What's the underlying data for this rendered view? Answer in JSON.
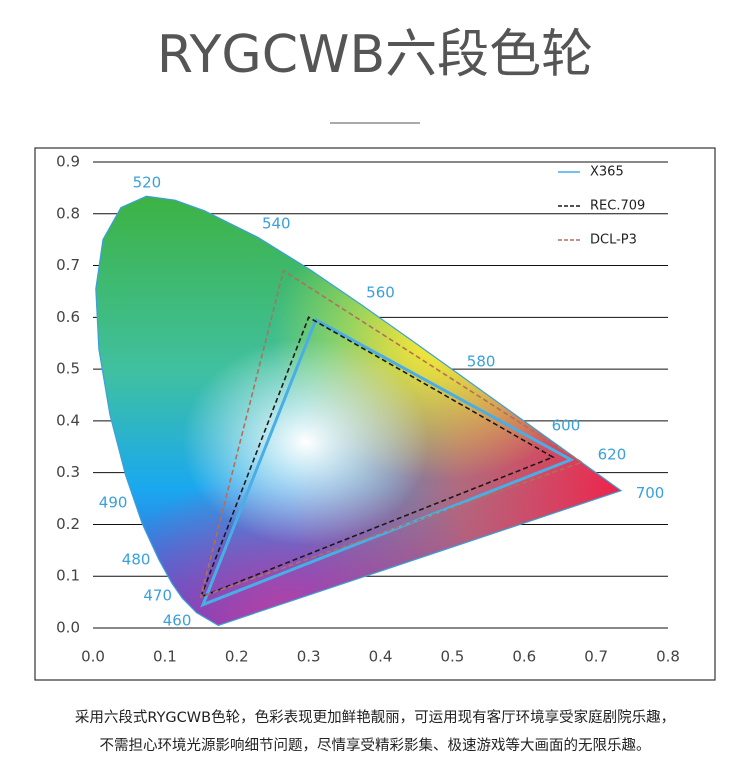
{
  "header": {
    "title": "RYGCWB六段色轮"
  },
  "chart_data": {
    "type": "chromaticity",
    "xlim": [
      0,
      0.8
    ],
    "ylim": [
      0,
      0.9
    ],
    "xticks": [
      {
        "value": 0,
        "label": "0.0"
      },
      0.1,
      0.2,
      0.3,
      0.4,
      0.5,
      0.6,
      0.7,
      0.8
    ],
    "yticks": [
      {
        "value": 0,
        "label": "0.0"
      },
      0.1,
      0.2,
      0.3,
      0.4,
      0.5,
      0.6,
      0.7,
      0.8,
      0.9
    ],
    "grid": true,
    "locus": {
      "x": [
        0.1741,
        0.144,
        0.1241,
        0.1096,
        0.0913,
        0.0687,
        0.0454,
        0.0235,
        0.0082,
        0.0039,
        0.0139,
        0.0389,
        0.0743,
        0.1142,
        0.1547,
        0.2296,
        0.3016,
        0.3731,
        0.4441,
        0.5125,
        0.5752,
        0.627,
        0.6915,
        0.719,
        0.7347
      ],
      "y": [
        0.005,
        0.0297,
        0.0578,
        0.0868,
        0.1327,
        0.2007,
        0.295,
        0.4127,
        0.5384,
        0.6548,
        0.7502,
        0.812,
        0.8338,
        0.8262,
        0.8059,
        0.7543,
        0.6923,
        0.6245,
        0.5547,
        0.4866,
        0.4242,
        0.3725,
        0.3083,
        0.2809,
        0.2653
      ]
    },
    "annotations": [
      {
        "text": "520",
        "x": 0.075,
        "y": 0.859
      },
      {
        "text": "540",
        "x": 0.255,
        "y": 0.78
      },
      {
        "text": "560",
        "x": 0.4,
        "y": 0.647
      },
      {
        "text": "580",
        "x": 0.54,
        "y": 0.514
      },
      {
        "text": "600",
        "x": 0.658,
        "y": 0.39
      },
      {
        "text": "620",
        "x": 0.722,
        "y": 0.334
      },
      {
        "text": "700",
        "x": 0.775,
        "y": 0.26
      },
      {
        "text": "490",
        "x": 0.028,
        "y": 0.241
      },
      {
        "text": "480",
        "x": 0.06,
        "y": 0.131
      },
      {
        "text": "470",
        "x": 0.09,
        "y": 0.062
      },
      {
        "text": "460",
        "x": 0.117,
        "y": 0.014
      }
    ],
    "series": [
      {
        "name": "X365",
        "color": "#4aaee6",
        "dashed": false,
        "x": [
          0.665,
          0.31,
          0.153
        ],
        "y": [
          0.325,
          0.595,
          0.045
        ]
      },
      {
        "name": "REC.709",
        "color": "#1a1a1a",
        "dashed": true,
        "x": [
          0.64,
          0.3,
          0.15
        ],
        "y": [
          0.33,
          0.6,
          0.06
        ]
      },
      {
        "name": "DCL-P3",
        "color": "#b0705a",
        "dashed": true,
        "x": [
          0.68,
          0.265,
          0.15
        ],
        "y": [
          0.32,
          0.69,
          0.06
        ]
      }
    ]
  },
  "caption": [
    "采用六段式RYGCWB色轮，色彩表现更加鲜艳靓丽，可运用现有客厅环境享受家庭剧院乐趣，",
    "不需担心环境光源影响细节问题，尽情享受精彩影集、极速游戏等大画面的无限乐趣。"
  ]
}
